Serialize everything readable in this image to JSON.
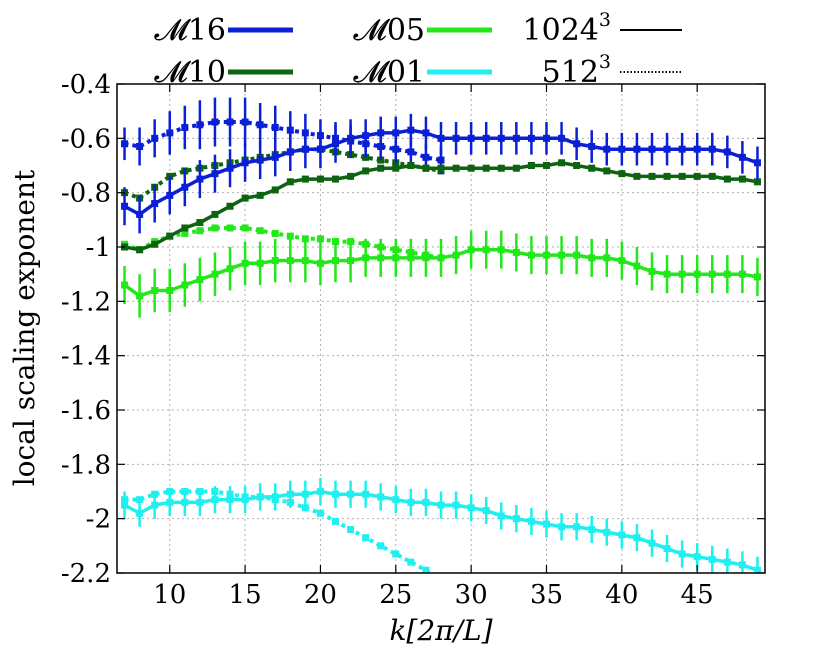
{
  "chart_data": {
    "type": "line",
    "xlabel": "k[2π/L]",
    "ylabel": "local scaling exponent",
    "xlim": [
      6.5,
      49.5
    ],
    "ylim": [
      -2.2,
      -0.4
    ],
    "x_ticks": [
      10,
      15,
      20,
      25,
      30,
      35,
      40,
      45
    ],
    "y_ticks": [
      -0.4,
      -0.6,
      -0.8,
      -1,
      -1.2,
      -1.4,
      -1.6,
      -1.8,
      -2,
      -2.2
    ],
    "grid": true,
    "legend": {
      "placement": "top",
      "colors": [
        {
          "label": "𝓜16",
          "color": "#0a1fd6"
        },
        {
          "label": "𝓜10",
          "color": "#0d6310"
        },
        {
          "label": "𝓜05",
          "color": "#22e81a"
        },
        {
          "label": "𝓜01",
          "color": "#1ef0f0"
        }
      ],
      "styles": [
        {
          "label": "1024",
          "superscript": "3",
          "dash": "solid"
        },
        {
          "label": "512",
          "superscript": "3",
          "dash": "dotted"
        }
      ]
    },
    "series": [
      {
        "mach": "𝓜16",
        "resolution": "1024³",
        "color": "#0a1fd6",
        "dash": "solid",
        "x": [
          7,
          8,
          9,
          10,
          11,
          12,
          13,
          14,
          15,
          16,
          17,
          18,
          19,
          20,
          21,
          22,
          23,
          24,
          25,
          26,
          27,
          28,
          29,
          30,
          31,
          32,
          33,
          34,
          35,
          36,
          37,
          38,
          39,
          40,
          41,
          42,
          43,
          44,
          45,
          46,
          47,
          48,
          49
        ],
        "y": [
          -0.85,
          -0.88,
          -0.84,
          -0.81,
          -0.78,
          -0.75,
          -0.73,
          -0.71,
          -0.69,
          -0.68,
          -0.67,
          -0.65,
          -0.64,
          -0.64,
          -0.62,
          -0.6,
          -0.59,
          -0.58,
          -0.58,
          -0.57,
          -0.58,
          -0.6,
          -0.6,
          -0.6,
          -0.6,
          -0.6,
          -0.6,
          -0.6,
          -0.6,
          -0.6,
          -0.62,
          -0.63,
          -0.64,
          -0.64,
          -0.64,
          -0.64,
          -0.64,
          -0.64,
          -0.64,
          -0.64,
          -0.65,
          -0.67,
          -0.69
        ],
        "err": [
          0.07,
          0.07,
          0.07,
          0.07,
          0.07,
          0.07,
          0.07,
          0.07,
          0.07,
          0.07,
          0.07,
          0.07,
          0.07,
          0.07,
          0.07,
          0.07,
          0.06,
          0.06,
          0.06,
          0.06,
          0.06,
          0.06,
          0.06,
          0.06,
          0.06,
          0.06,
          0.06,
          0.06,
          0.06,
          0.06,
          0.06,
          0.06,
          0.06,
          0.06,
          0.06,
          0.06,
          0.06,
          0.06,
          0.06,
          0.06,
          0.06,
          0.06,
          0.06
        ]
      },
      {
        "mach": "𝓜16",
        "resolution": "512³",
        "color": "#0a1fd6",
        "dash": "dotted",
        "x": [
          7,
          8,
          9,
          10,
          11,
          12,
          13,
          14,
          15,
          16,
          17,
          18,
          19,
          20,
          21,
          22,
          23,
          24,
          25,
          26,
          27,
          28
        ],
        "y": [
          -0.62,
          -0.63,
          -0.6,
          -0.58,
          -0.56,
          -0.55,
          -0.54,
          -0.54,
          -0.54,
          -0.55,
          -0.56,
          -0.57,
          -0.58,
          -0.59,
          -0.6,
          -0.61,
          -0.62,
          -0.63,
          -0.64,
          -0.65,
          -0.67,
          -0.68
        ],
        "err": [
          0.06,
          0.07,
          0.07,
          0.08,
          0.08,
          0.09,
          0.09,
          0.09,
          0.09,
          0.08,
          0.08,
          0.07,
          0.07,
          0.06,
          0.06,
          0.06,
          0.05,
          0.05,
          0.05,
          0.05,
          0.05,
          0.05
        ]
      },
      {
        "mach": "𝓜10",
        "resolution": "1024³",
        "color": "#0d6310",
        "dash": "solid",
        "x": [
          7,
          8,
          9,
          10,
          11,
          12,
          13,
          14,
          15,
          16,
          17,
          18,
          19,
          20,
          21,
          22,
          23,
          24,
          25,
          26,
          27,
          28,
          29,
          30,
          31,
          32,
          33,
          34,
          35,
          36,
          37,
          38,
          39,
          40,
          41,
          42,
          43,
          44,
          45,
          46,
          47,
          48,
          49
        ],
        "y": [
          -1,
          -1.01,
          -0.99,
          -0.96,
          -0.93,
          -0.91,
          -0.88,
          -0.85,
          -0.82,
          -0.81,
          -0.79,
          -0.76,
          -0.75,
          -0.75,
          -0.75,
          -0.74,
          -0.72,
          -0.71,
          -0.71,
          -0.7,
          -0.71,
          -0.71,
          -0.71,
          -0.71,
          -0.71,
          -0.71,
          -0.71,
          -0.7,
          -0.7,
          -0.69,
          -0.7,
          -0.71,
          -0.72,
          -0.73,
          -0.74,
          -0.74,
          -0.74,
          -0.74,
          -0.74,
          -0.74,
          -0.75,
          -0.75,
          -0.76
        ]
      },
      {
        "mach": "𝓜10",
        "resolution": "512³",
        "color": "#0d6310",
        "dash": "dotted",
        "x": [
          7,
          8,
          9,
          10,
          11,
          12,
          13,
          14,
          15,
          16,
          17,
          18,
          19,
          20,
          21,
          22,
          23,
          24,
          25,
          26,
          27,
          28
        ],
        "y": [
          -0.8,
          -0.82,
          -0.78,
          -0.74,
          -0.72,
          -0.71,
          -0.7,
          -0.69,
          -0.68,
          -0.67,
          -0.66,
          -0.65,
          -0.64,
          -0.64,
          -0.65,
          -0.66,
          -0.67,
          -0.68,
          -0.69,
          -0.7,
          -0.71,
          -0.72
        ]
      },
      {
        "mach": "𝓜05",
        "resolution": "1024³",
        "color": "#22e81a",
        "dash": "solid",
        "x": [
          7,
          8,
          9,
          10,
          11,
          12,
          13,
          14,
          15,
          16,
          17,
          18,
          19,
          20,
          21,
          22,
          23,
          24,
          25,
          26,
          27,
          28,
          29,
          30,
          31,
          32,
          33,
          34,
          35,
          36,
          37,
          38,
          39,
          40,
          41,
          42,
          43,
          44,
          45,
          46,
          47,
          48,
          49
        ],
        "y": [
          -1.14,
          -1.18,
          -1.16,
          -1.16,
          -1.14,
          -1.12,
          -1.1,
          -1.08,
          -1.06,
          -1.06,
          -1.05,
          -1.05,
          -1.05,
          -1.06,
          -1.05,
          -1.05,
          -1.04,
          -1.04,
          -1.04,
          -1.04,
          -1.04,
          -1.04,
          -1.03,
          -1.01,
          -1.01,
          -1.01,
          -1.02,
          -1.03,
          -1.03,
          -1.03,
          -1.03,
          -1.04,
          -1.04,
          -1.05,
          -1.07,
          -1.09,
          -1.1,
          -1.1,
          -1.1,
          -1.1,
          -1.1,
          -1.1,
          -1.11
        ],
        "err": [
          0.07,
          0.08,
          0.08,
          0.08,
          0.08,
          0.08,
          0.08,
          0.08,
          0.08,
          0.08,
          0.08,
          0.08,
          0.08,
          0.08,
          0.08,
          0.08,
          0.07,
          0.07,
          0.07,
          0.07,
          0.07,
          0.07,
          0.07,
          0.07,
          0.07,
          0.07,
          0.07,
          0.07,
          0.07,
          0.07,
          0.07,
          0.07,
          0.07,
          0.07,
          0.07,
          0.07,
          0.07,
          0.07,
          0.07,
          0.07,
          0.07,
          0.07,
          0.07
        ]
      },
      {
        "mach": "𝓜05",
        "resolution": "512³",
        "color": "#22e81a",
        "dash": "dotted",
        "x": [
          7,
          8,
          9,
          10,
          11,
          12,
          13,
          14,
          15,
          16,
          17,
          18,
          19,
          20,
          21,
          22,
          23,
          24,
          25,
          26,
          27,
          28
        ],
        "y": [
          -0.99,
          -1.01,
          -0.98,
          -0.96,
          -0.95,
          -0.94,
          -0.93,
          -0.93,
          -0.93,
          -0.94,
          -0.95,
          -0.96,
          -0.97,
          -0.97,
          -0.98,
          -0.98,
          -0.99,
          -1,
          -1.01,
          -1.02,
          -1.03,
          -1.04
        ]
      },
      {
        "mach": "𝓜01",
        "resolution": "1024³",
        "color": "#1ef0f0",
        "dash": "solid",
        "x": [
          7,
          8,
          9,
          10,
          11,
          12,
          13,
          14,
          15,
          16,
          17,
          18,
          19,
          20,
          21,
          22,
          23,
          24,
          25,
          26,
          27,
          28,
          29,
          30,
          31,
          32,
          33,
          34,
          35,
          36,
          37,
          38,
          39,
          40,
          41,
          42,
          43,
          44,
          45,
          46,
          47,
          48,
          49
        ],
        "y": [
          -1.95,
          -1.98,
          -1.95,
          -1.94,
          -1.94,
          -1.94,
          -1.93,
          -1.93,
          -1.93,
          -1.92,
          -1.92,
          -1.91,
          -1.91,
          -1.9,
          -1.91,
          -1.91,
          -1.91,
          -1.92,
          -1.93,
          -1.94,
          -1.94,
          -1.95,
          -1.95,
          -1.96,
          -1.97,
          -1.99,
          -2,
          -2.01,
          -2.02,
          -2.03,
          -2.03,
          -2.04,
          -2.05,
          -2.06,
          -2.07,
          -2.09,
          -2.11,
          -2.13,
          -2.14,
          -2.15,
          -2.16,
          -2.17,
          -2.19
        ],
        "err": [
          0.05,
          0.05,
          0.05,
          0.05,
          0.05,
          0.05,
          0.05,
          0.05,
          0.05,
          0.05,
          0.05,
          0.05,
          0.05,
          0.05,
          0.05,
          0.05,
          0.05,
          0.05,
          0.05,
          0.05,
          0.05,
          0.05,
          0.05,
          0.05,
          0.05,
          0.05,
          0.05,
          0.05,
          0.05,
          0.05,
          0.05,
          0.05,
          0.05,
          0.05,
          0.05,
          0.05,
          0.05,
          0.05,
          0.05,
          0.05,
          0.05,
          0.05,
          0.05
        ]
      },
      {
        "mach": "𝓜01",
        "resolution": "512³",
        "color": "#1ef0f0",
        "dash": "dotted",
        "x": [
          7,
          8,
          9,
          10,
          11,
          12,
          13,
          14,
          15,
          16,
          17,
          18,
          19,
          20,
          21,
          22,
          23,
          24,
          25,
          26,
          27,
          28
        ],
        "y": [
          -1.93,
          -1.93,
          -1.91,
          -1.9,
          -1.9,
          -1.9,
          -1.9,
          -1.91,
          -1.92,
          -1.92,
          -1.93,
          -1.94,
          -1.96,
          -1.98,
          -2.01,
          -2.04,
          -2.07,
          -2.1,
          -2.13,
          -2.16,
          -2.19,
          -2.22
        ]
      }
    ]
  }
}
